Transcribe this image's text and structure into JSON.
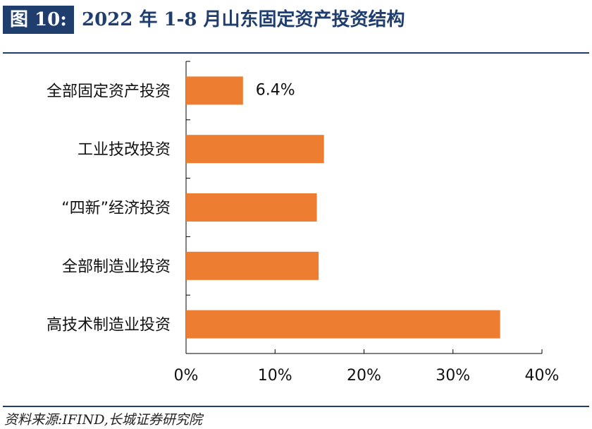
{
  "header": {
    "figure_label": "图 10:",
    "title": "2022 年 1-8 月山东固定资产投资结构"
  },
  "footer": {
    "source": "资料来源:IFIND,长城证券研究院"
  },
  "colors": {
    "bar": "#ed7d31",
    "heading": "#1f3e6e",
    "axis": "#000000"
  },
  "chart_data": {
    "type": "bar",
    "orientation": "horizontal",
    "categories": [
      "全部固定资产投资",
      "工业技改投资",
      "“四新”经济投资",
      "全部制造业投资",
      "高技术制造业投资"
    ],
    "values": [
      6.4,
      15.5,
      14.7,
      14.9,
      35.3
    ],
    "data_labels": [
      "6.4%",
      "",
      "",
      "",
      ""
    ],
    "xlim": [
      0,
      40
    ],
    "xticks": [
      0,
      10,
      20,
      30,
      40
    ],
    "xtick_labels": [
      "0%",
      "10%",
      "20%",
      "30%",
      "40%"
    ],
    "title": "",
    "xlabel": "",
    "ylabel": "",
    "grid": false,
    "legend": "none"
  }
}
